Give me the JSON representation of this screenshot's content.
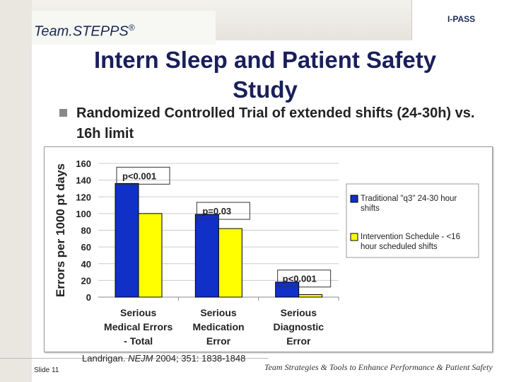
{
  "header": {
    "brand": "Team.STEPPS",
    "brand_mark": "®",
    "badge": "I-PASS"
  },
  "title": "Intern Sleep and Patient Safety Study",
  "bullet": "Randomized Controlled Trial of extended shifts (24-30h) vs. 16h limit",
  "chart_data": {
    "type": "bar",
    "ylabel": "Errors per 1000 pt days",
    "ylim": [
      0,
      160
    ],
    "yticks": [
      0,
      20,
      40,
      60,
      80,
      100,
      120,
      140,
      160
    ],
    "grid": true,
    "legend_position": "right",
    "categories": [
      [
        "Serious",
        "Medical Errors",
        "- Total"
      ],
      [
        "Serious",
        "Medication",
        "Error"
      ],
      [
        "Serious",
        "Diagnostic",
        "Error"
      ]
    ],
    "series": [
      {
        "name": "Traditional \"q3\" 24-30 hour shifts",
        "color": "#1030c8",
        "values": [
          136,
          99,
          18
        ]
      },
      {
        "name": "Intervention Schedule - <16 hour scheduled shifts",
        "color": "#ffff00",
        "values": [
          100,
          82,
          3
        ]
      }
    ],
    "annotations": [
      "p<0.001",
      "p=0.03",
      "p<0.001"
    ]
  },
  "footer": {
    "citation_author": "Landrigan.",
    "citation_journal": "NEJM",
    "citation_rest": "2004; 351: 1838-1848",
    "slide": "Slide 11",
    "tagline": "Team Strategies & Tools to Enhance Performance & Patient Safety"
  }
}
